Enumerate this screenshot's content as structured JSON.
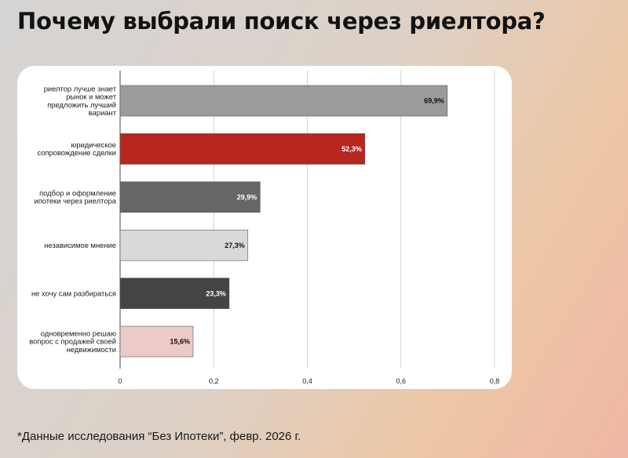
{
  "title": "Почему выбрали поиск через риелтора?",
  "footnote": "*Данные исследования “Без Ипотеки”, февр. 2026 г.",
  "chart_data": {
    "type": "bar",
    "orientation": "horizontal",
    "title": "",
    "xlabel": "",
    "ylabel": "",
    "xlim": [
      0,
      0.8
    ],
    "ticks": [
      0,
      0.2,
      0.4,
      0.6,
      0.8
    ],
    "tick_labels": [
      "0",
      "0,2",
      "0,4",
      "0,6",
      "0,8"
    ],
    "grid": true,
    "categories": [
      [
        "риелтор лучше знает",
        "рынок и может",
        "предложить лучший",
        "вариант"
      ],
      [
        "юридическое",
        "сопровождение сделки"
      ],
      [
        "подбор и оформление",
        "ипотеки через риелтора"
      ],
      [
        "независимое мнение"
      ],
      [
        "не хочу сам разбираться"
      ],
      [
        "одновременно решаю",
        "вопрос с продажей своей",
        "недвижимости"
      ]
    ],
    "values": [
      0.699,
      0.523,
      0.299,
      0.273,
      0.233,
      0.156
    ],
    "value_labels": [
      "69,9%",
      "52,3%",
      "29,9%",
      "27,3%",
      "23,3%",
      "15,6%"
    ],
    "colors": [
      "#9b9b9b",
      "#b8261e",
      "#666666",
      "#d9d9d9",
      "#444444",
      "#ebcac7"
    ],
    "label_colors": [
      "#111111",
      "#ffffff",
      "#ffffff",
      "#111111",
      "#ffffff",
      "#111111"
    ]
  }
}
